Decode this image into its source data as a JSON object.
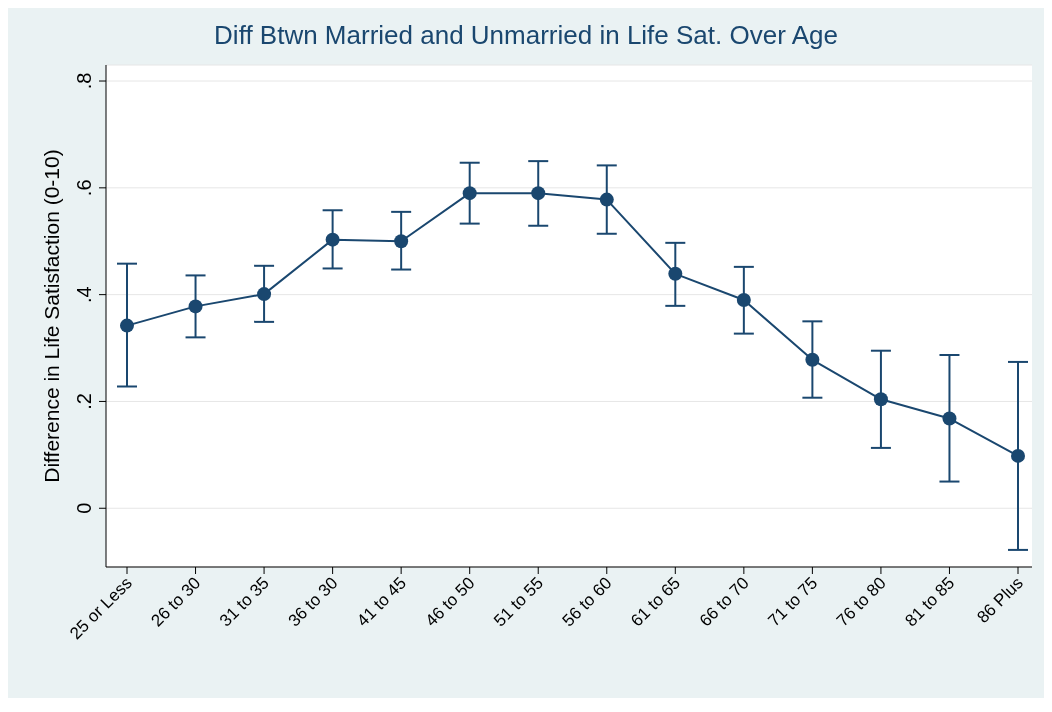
{
  "chart_data": {
    "type": "line",
    "title": "Diff Btwn Married and Unmarried in Life Sat. Over Age",
    "ylabel": "Difference in Life Satisfaction (0-10)",
    "categories": [
      "25 or Less",
      "26 to 30",
      "31 to 35",
      "36 to 30",
      "41 to 45",
      "46 to 50",
      "51 to 55",
      "56 to 60",
      "61 to 65",
      "66 to 70",
      "71 to 75",
      "76 to 80",
      "81 to 85",
      "86 Plus"
    ],
    "series": [
      {
        "color": "#1a476f",
        "values": [
          0.342,
          0.378,
          0.401,
          0.503,
          0.5,
          0.59,
          0.59,
          0.578,
          0.439,
          0.39,
          0.278,
          0.204,
          0.168,
          0.098
        ],
        "errors": [
          [
            0.228,
            0.458
          ],
          [
            0.32,
            0.436
          ],
          [
            0.349,
            0.454
          ],
          [
            0.449,
            0.558
          ],
          [
            0.447,
            0.555
          ],
          [
            0.533,
            0.647
          ],
          [
            0.529,
            0.65
          ],
          [
            0.514,
            0.642
          ],
          [
            0.379,
            0.497
          ],
          [
            0.327,
            0.452
          ],
          [
            0.207,
            0.35
          ],
          [
            0.113,
            0.295
          ],
          [
            0.05,
            0.287
          ],
          [
            -0.078,
            0.274
          ]
        ]
      }
    ],
    "ylim": [
      -0.11,
      0.83
    ],
    "yticks": [
      {
        "value": 0,
        "label": "0"
      },
      {
        "value": 0.2,
        "label": ".2"
      },
      {
        "value": 0.4,
        "label": ".4"
      },
      {
        "value": 0.6,
        "label": ".6"
      },
      {
        "value": 0.8,
        "label": ".8"
      }
    ],
    "grid": "y",
    "marker": "circle",
    "line_style": "solid"
  }
}
